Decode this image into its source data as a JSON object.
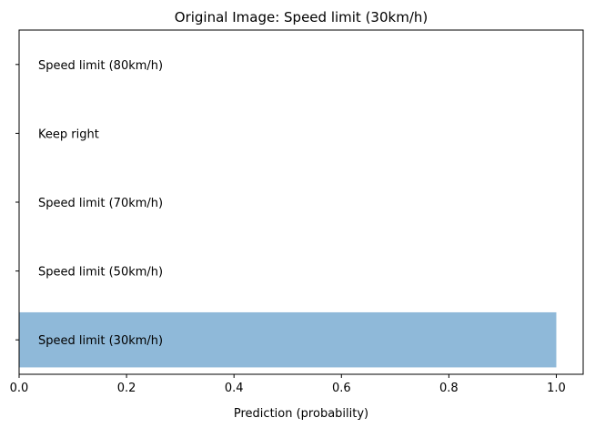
{
  "chart_data": {
    "type": "bar",
    "orientation": "horizontal",
    "title": "Original Image: Speed limit (30km/h)",
    "xlabel": "Prediction (probability)",
    "ylabel": "",
    "xlim": [
      0,
      1.05
    ],
    "xticks": [
      0,
      0.2,
      0.4,
      0.6,
      0.8,
      1.0
    ],
    "xtick_labels": [
      "0.0",
      "0.2",
      "0.4",
      "0.6",
      "0.8",
      "1.0"
    ],
    "categories": [
      "Speed limit (30km/h)",
      "Speed limit (50km/h)",
      "Speed limit (70km/h)",
      "Keep right",
      "Speed limit (80km/h)"
    ],
    "values": [
      1.0,
      0.0,
      0.0,
      0.0,
      0.0
    ],
    "bar_color": "#8fb9d9",
    "grid": false,
    "legend": "none"
  }
}
